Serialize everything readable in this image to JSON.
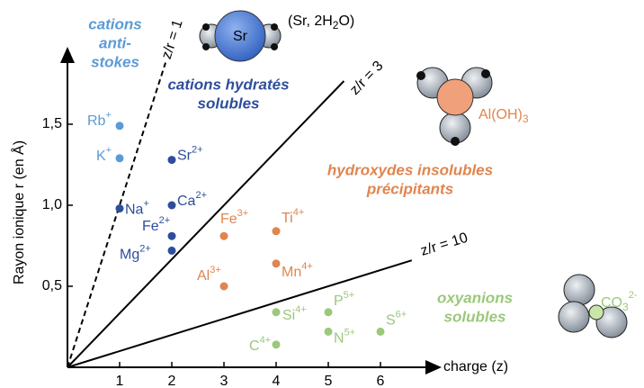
{
  "chart_data": {
    "type": "scatter",
    "x_label": "charge (z)",
    "y_label": "Rayon ionique r (en Å)",
    "xlim": [
      0,
      7
    ],
    "ylim": [
      0,
      1.9
    ],
    "xticks": [
      1,
      2,
      3,
      4,
      5,
      6
    ],
    "yticks": [
      {
        "value": 0.5,
        "label": "0,5"
      },
      {
        "value": 1.0,
        "label": "1,0"
      },
      {
        "value": 1.5,
        "label": "1,5"
      }
    ],
    "ratio_lines": [
      {
        "ratio": 1,
        "label": "z/r = 1",
        "dashed": true
      },
      {
        "ratio": 3,
        "label": "z/r = 3",
        "dashed": false
      },
      {
        "ratio": 10,
        "label": "z/r = 10",
        "dashed": false
      }
    ],
    "points": [
      {
        "ion": "Rb",
        "charge": "+",
        "z": 1,
        "r": 1.49,
        "color": "#5b9bd5"
      },
      {
        "ion": "K",
        "charge": "+",
        "z": 1,
        "r": 1.29,
        "color": "#5b9bd5"
      },
      {
        "ion": "Na",
        "charge": "+",
        "z": 1,
        "r": 0.98,
        "color": "#2e4e9b"
      },
      {
        "ion": "Sr",
        "charge": "2+",
        "z": 2,
        "r": 1.28,
        "color": "#2e4e9b"
      },
      {
        "ion": "Ca",
        "charge": "2+",
        "z": 2,
        "r": 1.0,
        "color": "#2e4e9b"
      },
      {
        "ion": "Fe",
        "charge": "2+",
        "z": 2,
        "r": 0.81,
        "color": "#2e4e9b"
      },
      {
        "ion": "Mg",
        "charge": "2+",
        "z": 2,
        "r": 0.72,
        "color": "#2e4e9b"
      },
      {
        "ion": "Fe",
        "charge": "3+",
        "z": 3,
        "r": 0.81,
        "color": "#e0854f"
      },
      {
        "ion": "Ti",
        "charge": "4+",
        "z": 4,
        "r": 0.84,
        "color": "#e0854f"
      },
      {
        "ion": "Al",
        "charge": "3+",
        "z": 3,
        "r": 0.5,
        "color": "#e0854f"
      },
      {
        "ion": "Mn",
        "charge": "4+",
        "z": 4,
        "r": 0.64,
        "color": "#e0854f"
      },
      {
        "ion": "Si",
        "charge": "4+",
        "z": 4,
        "r": 0.34,
        "color": "#9bc87a"
      },
      {
        "ion": "C",
        "charge": "4+",
        "z": 4,
        "r": 0.14,
        "color": "#9bc87a"
      },
      {
        "ion": "P",
        "charge": "5+",
        "z": 5,
        "r": 0.34,
        "color": "#9bc87a"
      },
      {
        "ion": "N",
        "charge": "5+",
        "z": 5,
        "r": 0.22,
        "color": "#9bc87a"
      },
      {
        "ion": "S",
        "charge": "6+",
        "z": 6,
        "r": 0.22,
        "color": "#9bc87a"
      }
    ],
    "regions": [
      {
        "lines": [
          "cations",
          "anti-",
          "stokes"
        ],
        "color": "#5b9bd5"
      },
      {
        "lines": [
          "cations hydratés",
          "solubles"
        ],
        "color": "#2e4e9b"
      },
      {
        "lines": [
          "hydroxydes insolubles",
          "précipitants"
        ],
        "color": "#e0854f"
      },
      {
        "lines": [
          "oxyanions",
          "solubles"
        ],
        "color": "#9bc87a"
      }
    ],
    "molecules": {
      "sr": {
        "center": "Sr",
        "formula": [
          "(Sr, 2H",
          "2",
          "O)"
        ]
      },
      "al": {
        "formula": [
          "Al(OH)",
          "3"
        ]
      },
      "co3": {
        "formula": [
          "CO",
          "3",
          "2-"
        ]
      }
    }
  }
}
